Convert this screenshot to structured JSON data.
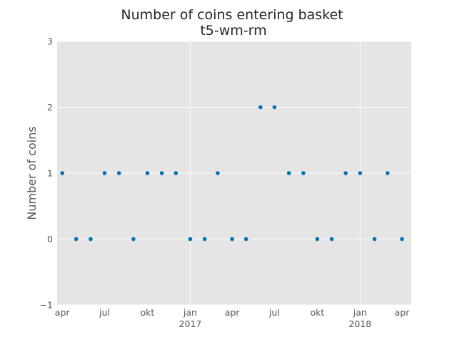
{
  "chart_data": {
    "type": "scatter",
    "title": "Number of coins entering basket",
    "subtitle": "t5-wm-rm",
    "xlabel": "",
    "ylabel": "Number of coins",
    "ylim": [
      -1,
      3
    ],
    "xlim": [
      "2016-03-21",
      "2018-04-21"
    ],
    "yticks": [
      -1,
      0,
      1,
      2,
      3
    ],
    "ytick_labels": [
      "−1",
      "0",
      "1",
      "2",
      "3"
    ],
    "xticks": [
      {
        "date": "2016-04-01",
        "label": "apr",
        "sublabel": ""
      },
      {
        "date": "2016-07-01",
        "label": "jul",
        "sublabel": ""
      },
      {
        "date": "2016-10-01",
        "label": "okt",
        "sublabel": ""
      },
      {
        "date": "2017-01-01",
        "label": "jan",
        "sublabel": "2017"
      },
      {
        "date": "2017-04-01",
        "label": "apr",
        "sublabel": ""
      },
      {
        "date": "2017-07-01",
        "label": "jul",
        "sublabel": ""
      },
      {
        "date": "2017-10-01",
        "label": "okt",
        "sublabel": ""
      },
      {
        "date": "2018-01-01",
        "label": "jan",
        "sublabel": "2018"
      },
      {
        "date": "2018-04-01",
        "label": "apr",
        "sublabel": ""
      }
    ],
    "grid": true,
    "colors": {
      "background": "#e5e5e5",
      "grid": "#ffffff",
      "point": "#0072b2"
    },
    "series": [
      {
        "points": [
          {
            "x": "2016-04-01",
            "y": 1
          },
          {
            "x": "2016-05-01",
            "y": 0
          },
          {
            "x": "2016-06-01",
            "y": 0
          },
          {
            "x": "2016-07-01",
            "y": 1
          },
          {
            "x": "2016-08-01",
            "y": 1
          },
          {
            "x": "2016-09-01",
            "y": 0
          },
          {
            "x": "2016-10-01",
            "y": 1
          },
          {
            "x": "2016-11-01",
            "y": 1
          },
          {
            "x": "2016-12-01",
            "y": 1
          },
          {
            "x": "2017-01-01",
            "y": 0
          },
          {
            "x": "2017-02-01",
            "y": 0
          },
          {
            "x": "2017-03-01",
            "y": 1
          },
          {
            "x": "2017-04-01",
            "y": 0
          },
          {
            "x": "2017-05-01",
            "y": 0
          },
          {
            "x": "2017-06-01",
            "y": 2
          },
          {
            "x": "2017-07-01",
            "y": 2
          },
          {
            "x": "2017-08-01",
            "y": 1
          },
          {
            "x": "2017-09-01",
            "y": 1
          },
          {
            "x": "2017-10-01",
            "y": 0
          },
          {
            "x": "2017-11-01",
            "y": 0
          },
          {
            "x": "2017-12-01",
            "y": 1
          },
          {
            "x": "2018-01-01",
            "y": 1
          },
          {
            "x": "2018-02-01",
            "y": 0
          },
          {
            "x": "2018-03-01",
            "y": 1
          },
          {
            "x": "2018-04-01",
            "y": 0
          }
        ]
      }
    ]
  }
}
